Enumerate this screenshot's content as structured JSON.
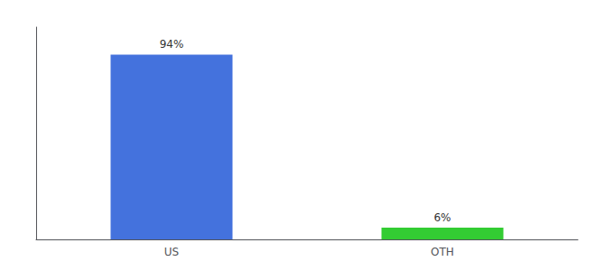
{
  "chart_data": {
    "type": "bar",
    "categories": [
      "US",
      "OTH"
    ],
    "values": [
      94,
      6
    ],
    "value_labels": [
      "94%",
      "6%"
    ],
    "colors": [
      "#4472dd",
      "#33cc33"
    ],
    "ylim": [
      0,
      108
    ],
    "data_labels": true,
    "tick_labels": "x",
    "grid": false
  }
}
